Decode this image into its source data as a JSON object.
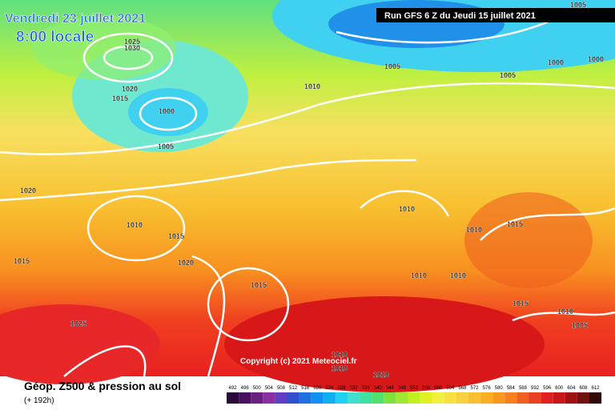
{
  "header": {
    "date": "Vendredi 23 juillet 2021",
    "time": "8:00 locale",
    "run": "Run GFS 6 Z du Jeudi 15 juillet 2021"
  },
  "isobar_labels": [
    "1005",
    "1025",
    "1030",
    "1020",
    "1015",
    "1000",
    "1005",
    "1010",
    "1005",
    "1005",
    "1000",
    "1000",
    "1020",
    "1010",
    "1015",
    "1020",
    "1015",
    "1015",
    "1025",
    "1010",
    "1010",
    "1015",
    "1010",
    "1010",
    "1015",
    "1010",
    "1005",
    "1010",
    "1010",
    "1010"
  ],
  "copyright": "Copyright (c) 2021 Meteociel.fr",
  "footer": {
    "title": "Géop. Z500 & pression au sol",
    "lead": "(+ 192h)"
  },
  "legend": {
    "values": [
      492,
      496,
      500,
      504,
      508,
      512,
      516,
      520,
      524,
      528,
      532,
      536,
      540,
      544,
      548,
      552,
      556,
      560,
      564,
      568,
      572,
      576,
      580,
      584,
      588,
      592,
      596,
      600,
      604,
      608,
      612
    ],
    "colors": [
      "#2a0a3a",
      "#4a1060",
      "#6a2080",
      "#8a30a0",
      "#6040c0",
      "#3050d0",
      "#2070e0",
      "#1090f0",
      "#10b0f0",
      "#20d0f0",
      "#40e0d0",
      "#40e0a0",
      "#50e070",
      "#80e040",
      "#a0e830",
      "#c0f020",
      "#e0f020",
      "#f0f040",
      "#f8e040",
      "#f8d040",
      "#f8c030",
      "#f8b020",
      "#f89820",
      "#f88020",
      "#f06020",
      "#e84020",
      "#e02020",
      "#c81818",
      "#a01010",
      "#701010",
      "#300808"
    ]
  }
}
